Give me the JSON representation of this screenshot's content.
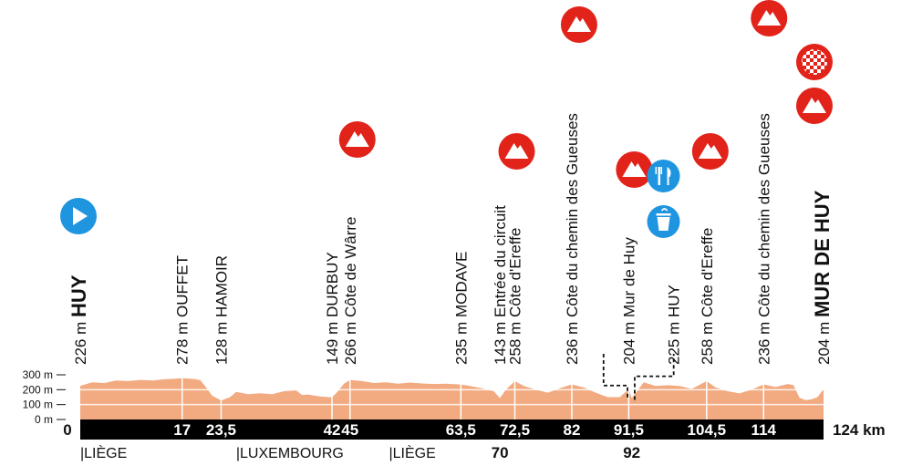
{
  "chart_data": {
    "type": "area",
    "distance_unit": "km",
    "total_distance": 124,
    "total_label": "124 km",
    "start_label": "0",
    "elevation_unit": "m",
    "ylim": [
      0,
      300
    ],
    "y_ticks": [
      "300 m",
      "200 m",
      "100 m",
      "0 m"
    ],
    "profile_color": "#f2aa80",
    "bar_color": "#000000",
    "icon_color": "#e2231a",
    "feed_color": "#1f95e0",
    "elevation": [
      {
        "x": 0,
        "y": 226
      },
      {
        "x": 2,
        "y": 250
      },
      {
        "x": 4,
        "y": 245
      },
      {
        "x": 6,
        "y": 262
      },
      {
        "x": 8,
        "y": 258
      },
      {
        "x": 10,
        "y": 266
      },
      {
        "x": 12,
        "y": 262
      },
      {
        "x": 14,
        "y": 270
      },
      {
        "x": 16,
        "y": 274
      },
      {
        "x": 17,
        "y": 278
      },
      {
        "x": 19,
        "y": 272
      },
      {
        "x": 20,
        "y": 265
      },
      {
        "x": 21,
        "y": 215
      },
      {
        "x": 22,
        "y": 160
      },
      {
        "x": 23.5,
        "y": 128
      },
      {
        "x": 25,
        "y": 150
      },
      {
        "x": 26,
        "y": 185
      },
      {
        "x": 28,
        "y": 170
      },
      {
        "x": 30,
        "y": 176
      },
      {
        "x": 32,
        "y": 170
      },
      {
        "x": 34,
        "y": 190
      },
      {
        "x": 36,
        "y": 196
      },
      {
        "x": 37,
        "y": 165
      },
      {
        "x": 38,
        "y": 168
      },
      {
        "x": 40,
        "y": 155
      },
      {
        "x": 42,
        "y": 149
      },
      {
        "x": 43,
        "y": 190
      },
      {
        "x": 44,
        "y": 240
      },
      {
        "x": 45,
        "y": 266
      },
      {
        "x": 47,
        "y": 258
      },
      {
        "x": 49,
        "y": 245
      },
      {
        "x": 51,
        "y": 250
      },
      {
        "x": 53,
        "y": 240
      },
      {
        "x": 55,
        "y": 248
      },
      {
        "x": 57,
        "y": 242
      },
      {
        "x": 59,
        "y": 238
      },
      {
        "x": 61,
        "y": 240
      },
      {
        "x": 63.5,
        "y": 235
      },
      {
        "x": 65,
        "y": 225
      },
      {
        "x": 67,
        "y": 210
      },
      {
        "x": 69,
        "y": 190
      },
      {
        "x": 70,
        "y": 143
      },
      {
        "x": 71,
        "y": 200
      },
      {
        "x": 72.5,
        "y": 258
      },
      {
        "x": 74,
        "y": 225
      },
      {
        "x": 76,
        "y": 200
      },
      {
        "x": 78,
        "y": 180
      },
      {
        "x": 80,
        "y": 210
      },
      {
        "x": 82,
        "y": 236
      },
      {
        "x": 84,
        "y": 215
      },
      {
        "x": 86,
        "y": 180
      },
      {
        "x": 88,
        "y": 150
      },
      {
        "x": 90,
        "y": 150
      },
      {
        "x": 91.5,
        "y": 204
      },
      {
        "x": 92,
        "y": 143
      },
      {
        "x": 94,
        "y": 250
      },
      {
        "x": 96,
        "y": 225
      },
      {
        "x": 98,
        "y": 230
      },
      {
        "x": 100,
        "y": 225
      },
      {
        "x": 102,
        "y": 205
      },
      {
        "x": 104.5,
        "y": 258
      },
      {
        "x": 106,
        "y": 215
      },
      {
        "x": 108,
        "y": 190
      },
      {
        "x": 110,
        "y": 175
      },
      {
        "x": 112,
        "y": 200
      },
      {
        "x": 114,
        "y": 236
      },
      {
        "x": 116,
        "y": 218
      },
      {
        "x": 118,
        "y": 238
      },
      {
        "x": 119,
        "y": 230
      },
      {
        "x": 120,
        "y": 145
      },
      {
        "x": 121,
        "y": 130
      },
      {
        "x": 122,
        "y": 135
      },
      {
        "x": 123,
        "y": 150
      },
      {
        "x": 124,
        "y": 204
      }
    ],
    "km_markers": [
      {
        "x": 17,
        "label": "17"
      },
      {
        "x": 23.5,
        "label": "23,5"
      },
      {
        "x": 42,
        "label": "42"
      },
      {
        "x": 45,
        "label": "45"
      },
      {
        "x": 63.5,
        "label": "63,5"
      },
      {
        "x": 72.5,
        "label": "72,5"
      },
      {
        "x": 82,
        "label": "82"
      },
      {
        "x": 91.5,
        "label": "91,5"
      },
      {
        "x": 104.5,
        "label": "104,5"
      },
      {
        "x": 114,
        "label": "114"
      }
    ],
    "below_markers": [
      {
        "x": 70,
        "label": "70"
      },
      {
        "x": 92,
        "label": "92"
      }
    ],
    "regions": [
      {
        "x": 0,
        "label": "|LIÈGE"
      },
      {
        "x": 26,
        "label": "|LUXEMBOURG"
      },
      {
        "x": 51.5,
        "label": "|LIÈGE"
      }
    ],
    "places": [
      {
        "x": 0,
        "lines": [
          "226 m HUY"
        ],
        "bold_part": "HUY",
        "top": true
      },
      {
        "x": 17,
        "lines": [
          "278 m OUFFET"
        ]
      },
      {
        "x": 23.5,
        "lines": [
          "128 m HAMOIR"
        ]
      },
      {
        "x": 42,
        "lines": [
          "149 m DURBUY"
        ]
      },
      {
        "x": 45,
        "lines": [
          "266 m Côte de Wârre"
        ]
      },
      {
        "x": 63.5,
        "lines": [
          "235 m MODAVE"
        ]
      },
      {
        "x": 70,
        "lines": [
          "143 m Entrée du circuit"
        ]
      },
      {
        "x": 72.5,
        "lines": [
          "258 m Côte d'Ereffe"
        ]
      },
      {
        "x": 82,
        "lines": [
          "236 m Côte du chemin des Gueuses"
        ]
      },
      {
        "x": 91.5,
        "lines": [
          "204 m Mur de Huy"
        ]
      },
      {
        "x": 99,
        "lines": [
          "225 m HUY"
        ]
      },
      {
        "x": 104.5,
        "lines": [
          "258 m Côte d'Ereffe"
        ]
      },
      {
        "x": 114,
        "lines": [
          "236 m Côte du chemin des Gueuses"
        ]
      },
      {
        "x": 124,
        "lines": [
          "204 m MUR DE HUY"
        ],
        "bold_part": "MUR DE HUY"
      }
    ],
    "icons": [
      {
        "x": 0,
        "kind": "start-icon"
      },
      {
        "x": 45,
        "kind": "climb-icon"
      },
      {
        "x": 72.5,
        "kind": "climb-icon"
      },
      {
        "x": 82,
        "kind": "climb-icon"
      },
      {
        "x": 91.5,
        "kind": "climb-icon"
      },
      {
        "x": 97,
        "kind": "feed-zone-icon"
      },
      {
        "x": 97,
        "kind": "waste-zone-icon"
      },
      {
        "x": 104.5,
        "kind": "climb-icon"
      },
      {
        "x": 114,
        "kind": "climb-icon"
      },
      {
        "x": 124,
        "kind": "finish-flag-icon"
      },
      {
        "x": 124,
        "kind": "climb-icon"
      }
    ]
  }
}
